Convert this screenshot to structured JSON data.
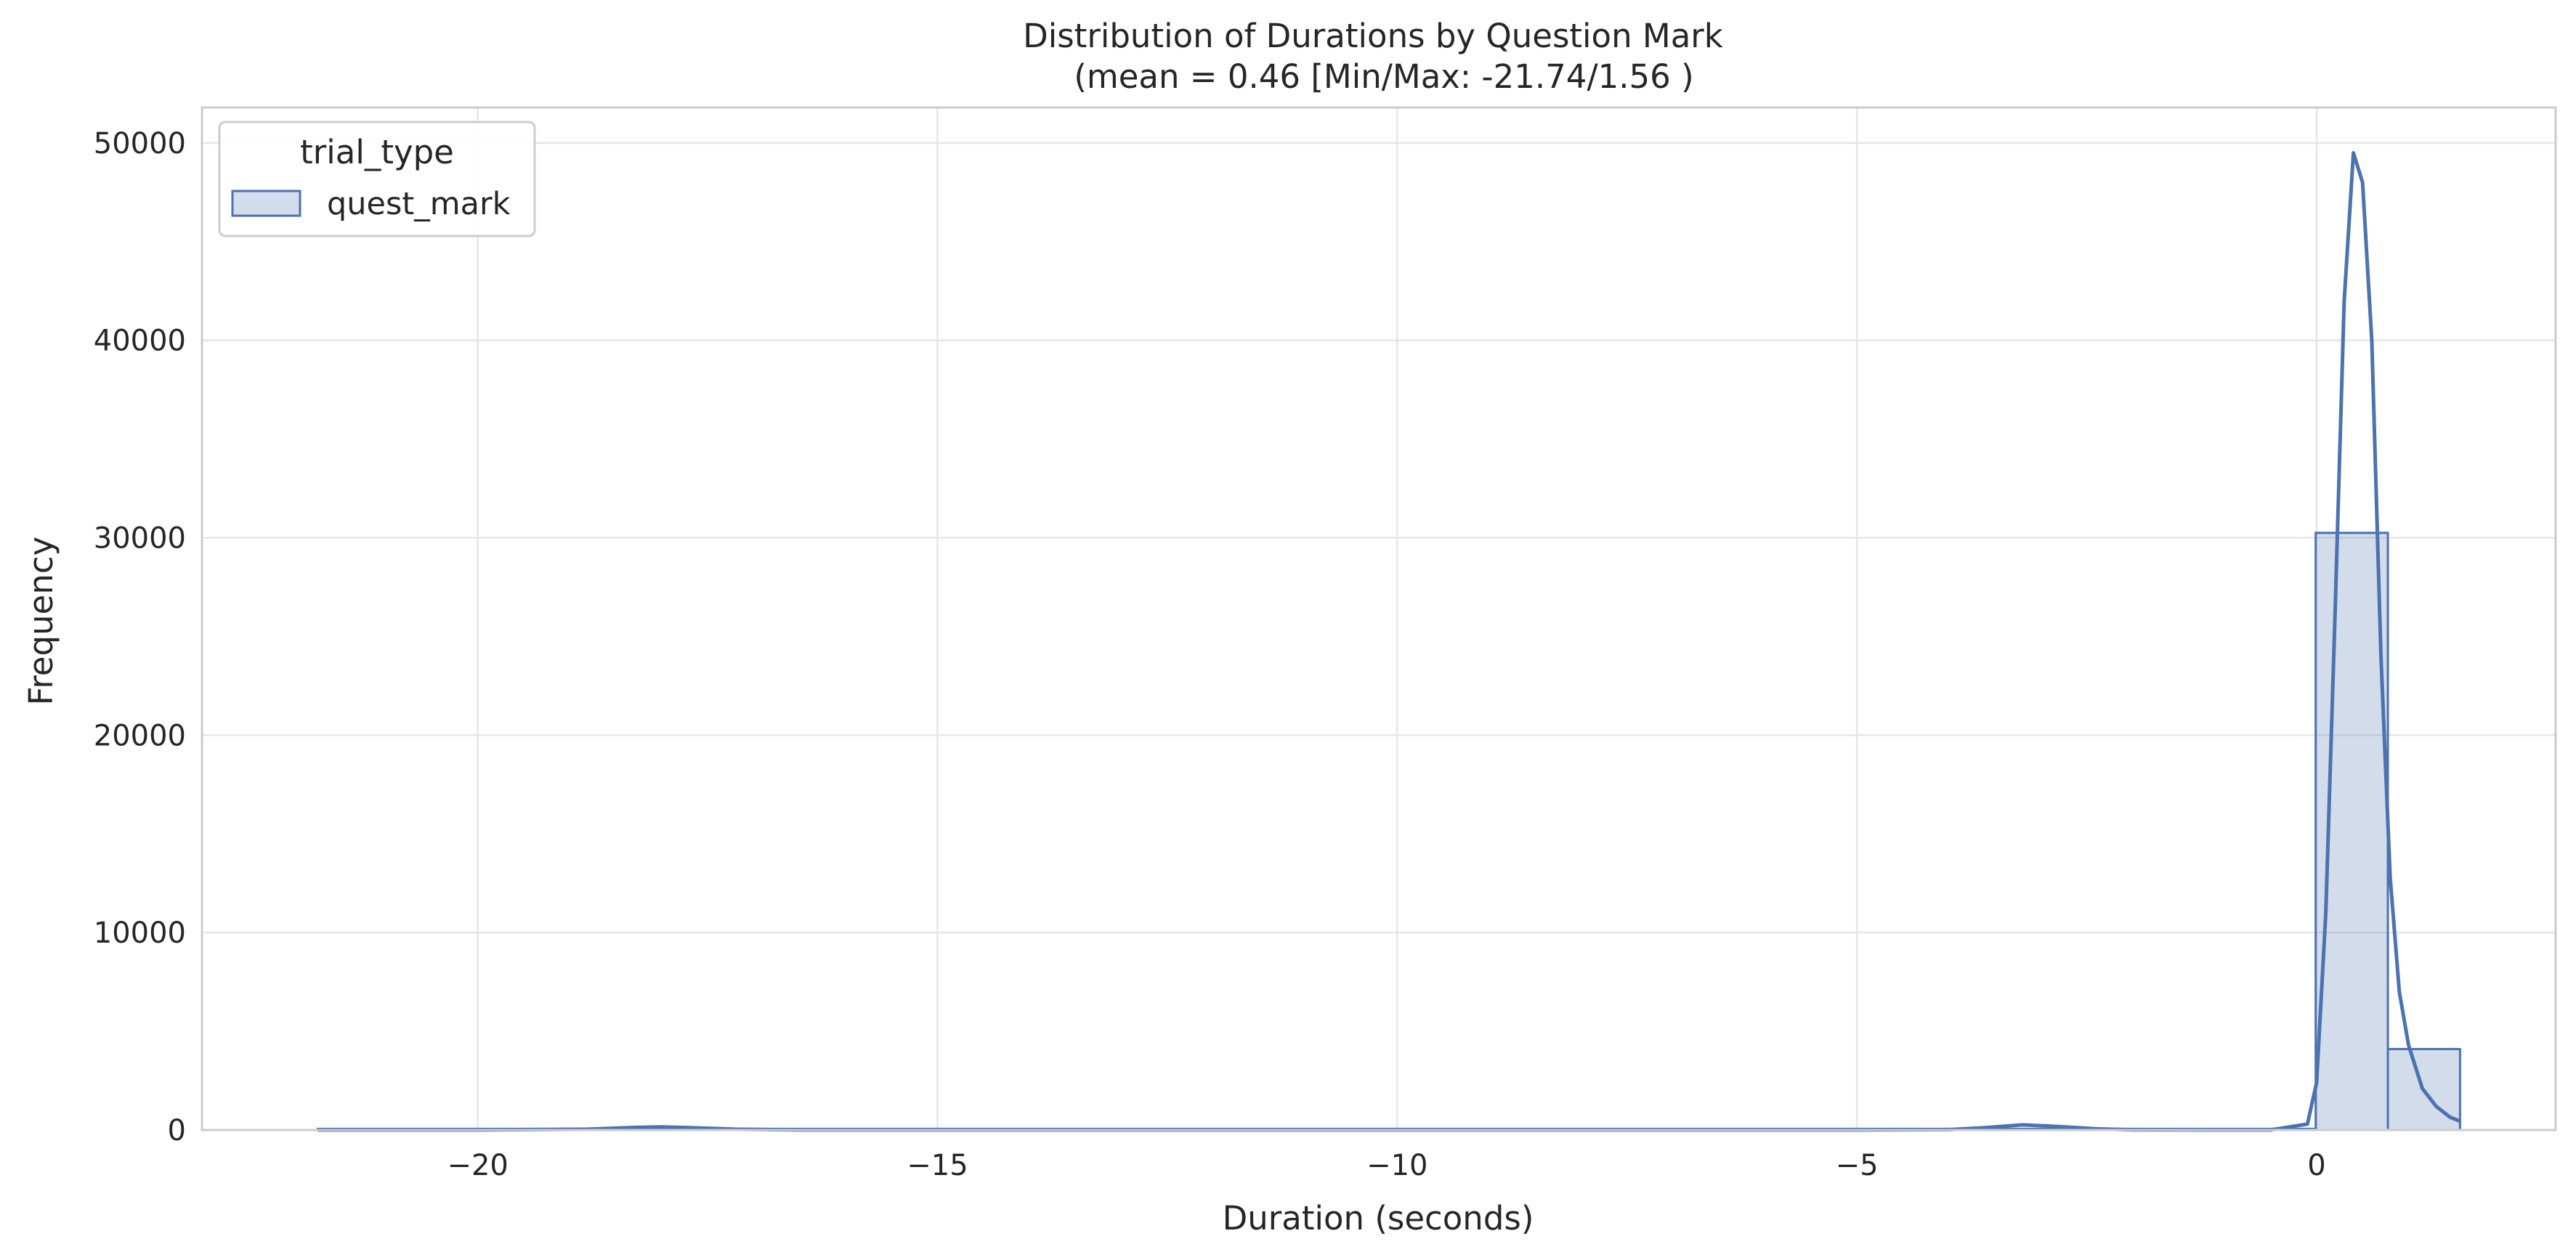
{
  "chart_data": {
    "type": "histogram",
    "title": "Distribution of Durations by Question Mark",
    "subtitle": "(mean = 0.46 [Min/Max: -21.74/1.56 )",
    "xlabel": "Duration (seconds)",
    "ylabel": "Frequency",
    "xlim": [
      -23.0,
      2.6
    ],
    "ylim": [
      0,
      51800
    ],
    "xticks": [
      -20,
      -15,
      -10,
      -5,
      0
    ],
    "xtick_labels": [
      "−20",
      "−15",
      "−10",
      "−5",
      "0"
    ],
    "yticks": [
      0,
      10000,
      20000,
      30000,
      40000,
      50000
    ],
    "ytick_labels": [
      "0",
      "10000",
      "20000",
      "30000",
      "40000",
      "50000"
    ],
    "grid": true,
    "legend": {
      "title": "trial_type",
      "position": "upper-left",
      "entries": [
        "quest_mark"
      ]
    },
    "colors": {
      "series": "#4c72b0",
      "fill": "#4c72b0",
      "grid": "#e6e6e6",
      "spine": "#cccccc"
    },
    "series": [
      {
        "name": "quest_mark",
        "bins": [
          {
            "x0": -21.74,
            "x1": -0.01,
            "count": 60
          },
          {
            "x0": -0.01,
            "x1": 0.775,
            "count": 30250
          },
          {
            "x0": 0.775,
            "x1": 1.56,
            "count": 4100
          }
        ],
        "kde": [
          [
            -21.74,
            5
          ],
          [
            -20,
            5
          ],
          [
            -18.8,
            40
          ],
          [
            -18.3,
            130
          ],
          [
            -18.0,
            160
          ],
          [
            -17.7,
            120
          ],
          [
            -17.2,
            40
          ],
          [
            -16.5,
            5
          ],
          [
            -5,
            5
          ],
          [
            -4.0,
            20
          ],
          [
            -3.6,
            120
          ],
          [
            -3.2,
            260
          ],
          [
            -2.9,
            200
          ],
          [
            -2.6,
            120
          ],
          [
            -2.4,
            60
          ],
          [
            -2.0,
            10
          ],
          [
            -0.5,
            5
          ],
          [
            -0.1,
            300
          ],
          [
            0.0,
            2400
          ],
          [
            0.1,
            11000
          ],
          [
            0.2,
            26000
          ],
          [
            0.3,
            42000
          ],
          [
            0.4,
            49500
          ],
          [
            0.5,
            48000
          ],
          [
            0.6,
            40000
          ],
          [
            0.7,
            24000
          ],
          [
            0.8,
            12800
          ],
          [
            0.9,
            7000
          ],
          [
            1.0,
            4300
          ],
          [
            1.15,
            2100
          ],
          [
            1.3,
            1200
          ],
          [
            1.45,
            650
          ],
          [
            1.56,
            450
          ]
        ]
      }
    ]
  }
}
